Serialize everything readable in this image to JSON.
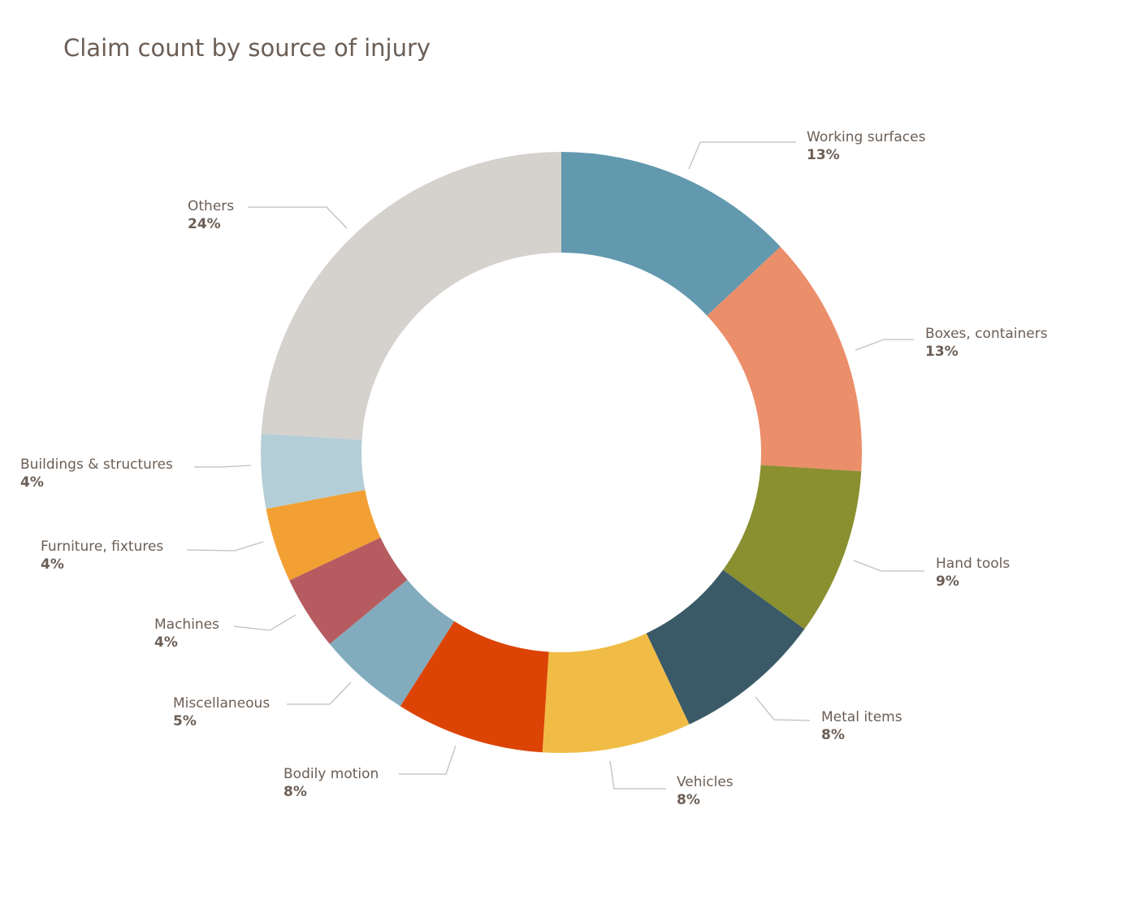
{
  "chart_data": {
    "type": "pie",
    "variant": "donut",
    "title": "Claim count by source of injury",
    "start_angle": "top, clockwise",
    "legend": "none (leader-line labels)",
    "slices": [
      {
        "label": "Working surfaces",
        "value": 13,
        "value_label": "13%",
        "color": "#6299AF"
      },
      {
        "label": "Boxes, containers",
        "value": 13,
        "value_label": "13%",
        "color": "#EB8E6A"
      },
      {
        "label": "Hand tools",
        "value": 9,
        "value_label": "9%",
        "color": "#8A8F30"
      },
      {
        "label": "Metal items",
        "value": 8,
        "value_label": "8%",
        "color": "#3A5A68"
      },
      {
        "label": "Vehicles",
        "value": 8,
        "value_label": "8%",
        "color": "#F0BC45"
      },
      {
        "label": "Bodily motion",
        "value": 8,
        "value_label": "8%",
        "color": "#DC4405"
      },
      {
        "label": "Miscellaneous",
        "value": 5,
        "value_label": "5%",
        "color": "#82ACBE"
      },
      {
        "label": "Machines",
        "value": 4,
        "value_label": "4%",
        "color": "#B65C60"
      },
      {
        "label": "Furniture, fixtures",
        "value": 4,
        "value_label": "4%",
        "color": "#F2A033"
      },
      {
        "label": "Buildings & structures",
        "value": 4,
        "value_label": "4%",
        "color": "#B4CED7"
      },
      {
        "label": "Others",
        "value": 24,
        "value_label": "24%",
        "color": "#D5D1CD"
      }
    ]
  }
}
